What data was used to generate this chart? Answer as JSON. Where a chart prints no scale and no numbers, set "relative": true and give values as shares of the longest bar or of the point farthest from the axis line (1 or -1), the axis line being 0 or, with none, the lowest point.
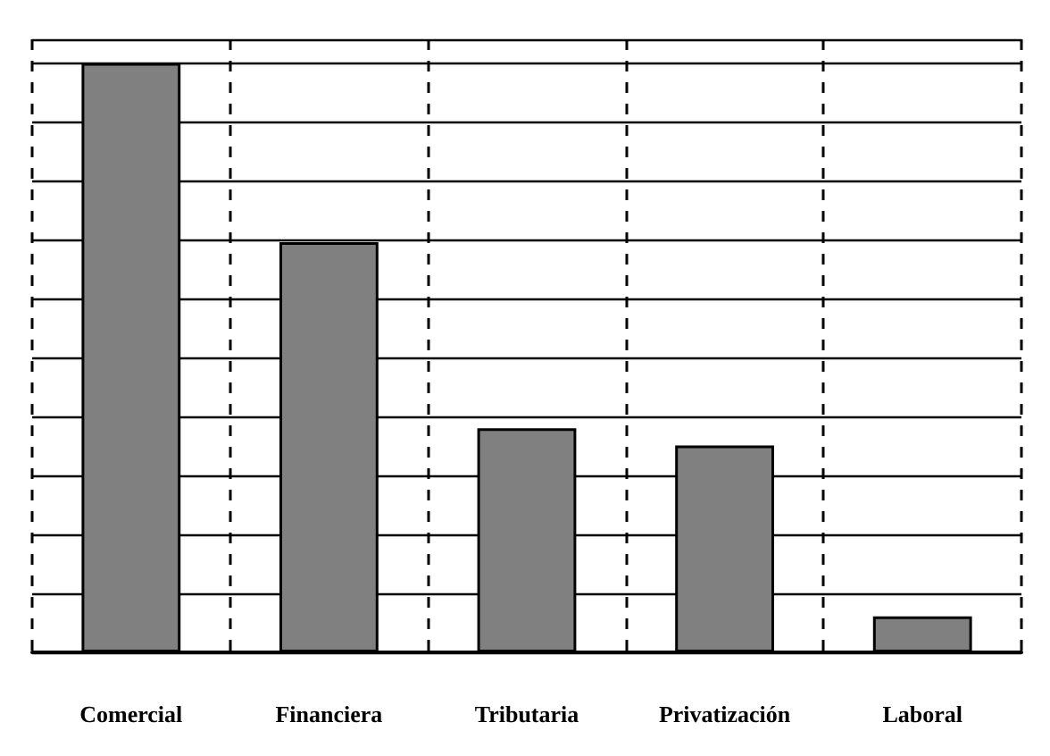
{
  "chart_data": {
    "type": "bar",
    "relative": true,
    "categories": [
      "Comercial",
      "Financiera",
      "Tributaria",
      "Privatización",
      "Laboral"
    ],
    "values": [
      1,
      0.696,
      0.38,
      0.351,
      0.061
    ],
    "color": "#808080",
    "grid": true
  }
}
